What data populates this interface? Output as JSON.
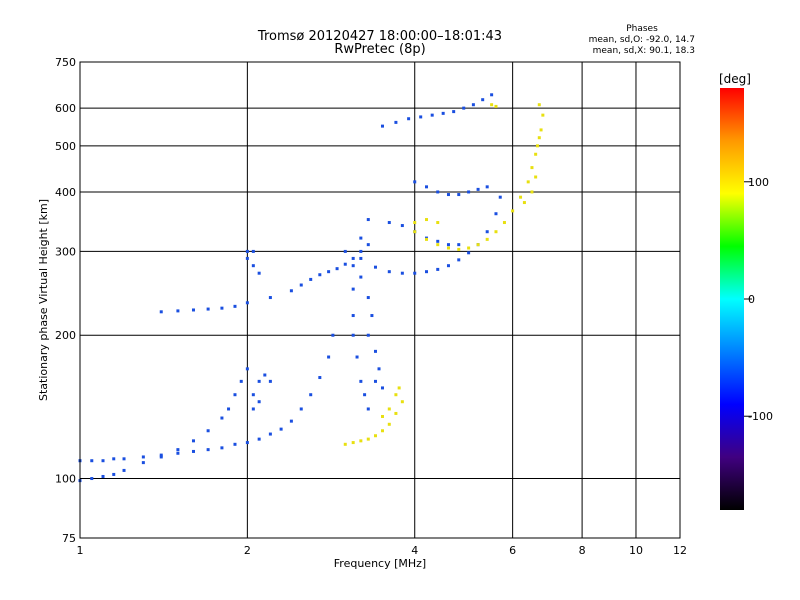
{
  "chart_data": {
    "type": "scatter",
    "title_lines": [
      "Tromsø 20120427 18:00:00–18:01:43",
      "RwPretec (8p)"
    ],
    "phases_box": [
      "Phases",
      "mean, sd,O: -92.0, 14.7",
      "mean, sd,X:  90.1, 18.3"
    ],
    "xlabel": "Frequency [MHz]",
    "ylabel": "Stationary phase Virtual Height [km]",
    "x_scale": "log",
    "y_scale": "log",
    "xlim": [
      1,
      12
    ],
    "ylim": [
      75,
      750
    ],
    "x_ticks": [
      1,
      2,
      4,
      6,
      8,
      10,
      12
    ],
    "y_ticks": [
      75,
      100,
      200,
      300,
      400,
      500,
      600,
      750
    ],
    "grid": true,
    "colorbar": {
      "label": "[deg]",
      "range": [
        -180,
        180
      ],
      "ticks": [
        100,
        0,
        -100
      ],
      "colors": [
        "#ff0000",
        "#ff9900",
        "#ffff00",
        "#00ff00",
        "#00ffff",
        "#0080ff",
        "#0000ff",
        "#400080",
        "#000000"
      ]
    },
    "series": [
      {
        "name": "O",
        "color": "#1a4fe0",
        "points": [
          [
            1.0,
            109
          ],
          [
            1.05,
            109
          ],
          [
            1.1,
            109
          ],
          [
            1.15,
            110
          ],
          [
            1.2,
            110
          ],
          [
            1.3,
            111
          ],
          [
            1.4,
            112
          ],
          [
            1.5,
            113
          ],
          [
            1.6,
            114
          ],
          [
            1.7,
            115
          ],
          [
            1.8,
            116
          ],
          [
            1.9,
            118
          ],
          [
            2.0,
            119
          ],
          [
            2.1,
            121
          ],
          [
            2.2,
            124
          ],
          [
            2.3,
            127
          ],
          [
            2.4,
            132
          ],
          [
            2.5,
            140
          ],
          [
            2.6,
            150
          ],
          [
            2.7,
            163
          ],
          [
            2.8,
            180
          ],
          [
            2.85,
            200
          ],
          [
            1.0,
            99
          ],
          [
            1.05,
            100
          ],
          [
            1.1,
            101
          ],
          [
            1.15,
            102
          ],
          [
            1.2,
            104
          ],
          [
            1.3,
            108
          ],
          [
            1.4,
            111
          ],
          [
            1.5,
            115
          ],
          [
            1.6,
            120
          ],
          [
            1.7,
            126
          ],
          [
            1.8,
            134
          ],
          [
            1.85,
            140
          ],
          [
            1.9,
            150
          ],
          [
            1.95,
            160
          ],
          [
            2.0,
            170
          ],
          [
            2.05,
            150
          ],
          [
            2.1,
            160
          ],
          [
            2.15,
            165
          ],
          [
            2.2,
            160
          ],
          [
            2.05,
            140
          ],
          [
            2.1,
            145
          ],
          [
            1.4,
            224
          ],
          [
            1.5,
            225
          ],
          [
            1.6,
            226
          ],
          [
            1.7,
            227
          ],
          [
            1.8,
            228
          ],
          [
            1.9,
            230
          ],
          [
            2.0,
            234
          ],
          [
            2.2,
            240
          ],
          [
            2.4,
            248
          ],
          [
            2.5,
            255
          ],
          [
            2.6,
            262
          ],
          [
            2.7,
            268
          ],
          [
            2.8,
            272
          ],
          [
            2.9,
            276
          ],
          [
            3.0,
            282
          ],
          [
            3.1,
            290
          ],
          [
            3.2,
            300
          ],
          [
            3.3,
            310
          ],
          [
            2.0,
            290
          ],
          [
            2.05,
            280
          ],
          [
            2.1,
            270
          ],
          [
            2.0,
            300
          ],
          [
            2.05,
            300
          ],
          [
            3.0,
            300
          ],
          [
            3.2,
            290
          ],
          [
            3.4,
            278
          ],
          [
            3.6,
            272
          ],
          [
            3.8,
            270
          ],
          [
            4.0,
            270
          ],
          [
            4.2,
            272
          ],
          [
            4.4,
            275
          ],
          [
            4.6,
            280
          ],
          [
            4.8,
            288
          ],
          [
            5.0,
            298
          ],
          [
            5.2,
            310
          ],
          [
            5.4,
            330
          ],
          [
            5.6,
            360
          ],
          [
            5.7,
            390
          ],
          [
            3.6,
            345
          ],
          [
            3.8,
            340
          ],
          [
            4.0,
            330
          ],
          [
            4.2,
            320
          ],
          [
            4.4,
            315
          ],
          [
            4.6,
            310
          ],
          [
            4.8,
            310
          ],
          [
            4.0,
            420
          ],
          [
            4.2,
            410
          ],
          [
            4.4,
            400
          ],
          [
            4.6,
            395
          ],
          [
            4.8,
            395
          ],
          [
            5.0,
            400
          ],
          [
            5.2,
            405
          ],
          [
            5.4,
            410
          ],
          [
            3.5,
            550
          ],
          [
            3.7,
            560
          ],
          [
            3.9,
            570
          ],
          [
            4.1,
            575
          ],
          [
            4.3,
            580
          ],
          [
            4.5,
            585
          ],
          [
            4.7,
            590
          ],
          [
            4.9,
            600
          ],
          [
            5.1,
            610
          ],
          [
            5.3,
            625
          ],
          [
            5.5,
            640
          ],
          [
            3.1,
            250
          ],
          [
            3.1,
            220
          ],
          [
            3.1,
            200
          ],
          [
            3.15,
            180
          ],
          [
            3.2,
            160
          ],
          [
            3.25,
            150
          ],
          [
            3.3,
            140
          ],
          [
            3.2,
            265
          ],
          [
            3.3,
            240
          ],
          [
            3.35,
            220
          ],
          [
            3.3,
            200
          ],
          [
            3.4,
            185
          ],
          [
            3.45,
            170
          ],
          [
            3.4,
            160
          ],
          [
            3.5,
            155
          ],
          [
            3.1,
            280
          ],
          [
            3.2,
            320
          ],
          [
            3.3,
            350
          ]
        ]
      },
      {
        "name": "X",
        "color": "#e8e010",
        "points": [
          [
            3.0,
            118
          ],
          [
            3.1,
            119
          ],
          [
            3.2,
            120
          ],
          [
            3.3,
            121
          ],
          [
            3.4,
            123
          ],
          [
            3.5,
            126
          ],
          [
            3.6,
            130
          ],
          [
            3.7,
            137
          ],
          [
            3.8,
            145
          ],
          [
            3.75,
            155
          ],
          [
            3.7,
            150
          ],
          [
            3.6,
            140
          ],
          [
            3.5,
            135
          ],
          [
            4.0,
            330
          ],
          [
            4.2,
            318
          ],
          [
            4.4,
            310
          ],
          [
            4.6,
            305
          ],
          [
            4.8,
            303
          ],
          [
            5.0,
            305
          ],
          [
            5.2,
            310
          ],
          [
            5.4,
            318
          ],
          [
            5.6,
            330
          ],
          [
            5.8,
            345
          ],
          [
            6.0,
            365
          ],
          [
            6.2,
            390
          ],
          [
            6.4,
            420
          ],
          [
            6.5,
            450
          ],
          [
            6.6,
            480
          ],
          [
            6.65,
            500
          ],
          [
            6.7,
            520
          ],
          [
            6.75,
            540
          ],
          [
            6.8,
            580
          ],
          [
            6.7,
            610
          ],
          [
            4.0,
            345
          ],
          [
            4.2,
            350
          ],
          [
            4.4,
            345
          ],
          [
            6.6,
            430
          ],
          [
            6.5,
            400
          ],
          [
            6.3,
            380
          ],
          [
            5.5,
            610
          ],
          [
            5.6,
            605
          ]
        ]
      }
    ]
  }
}
